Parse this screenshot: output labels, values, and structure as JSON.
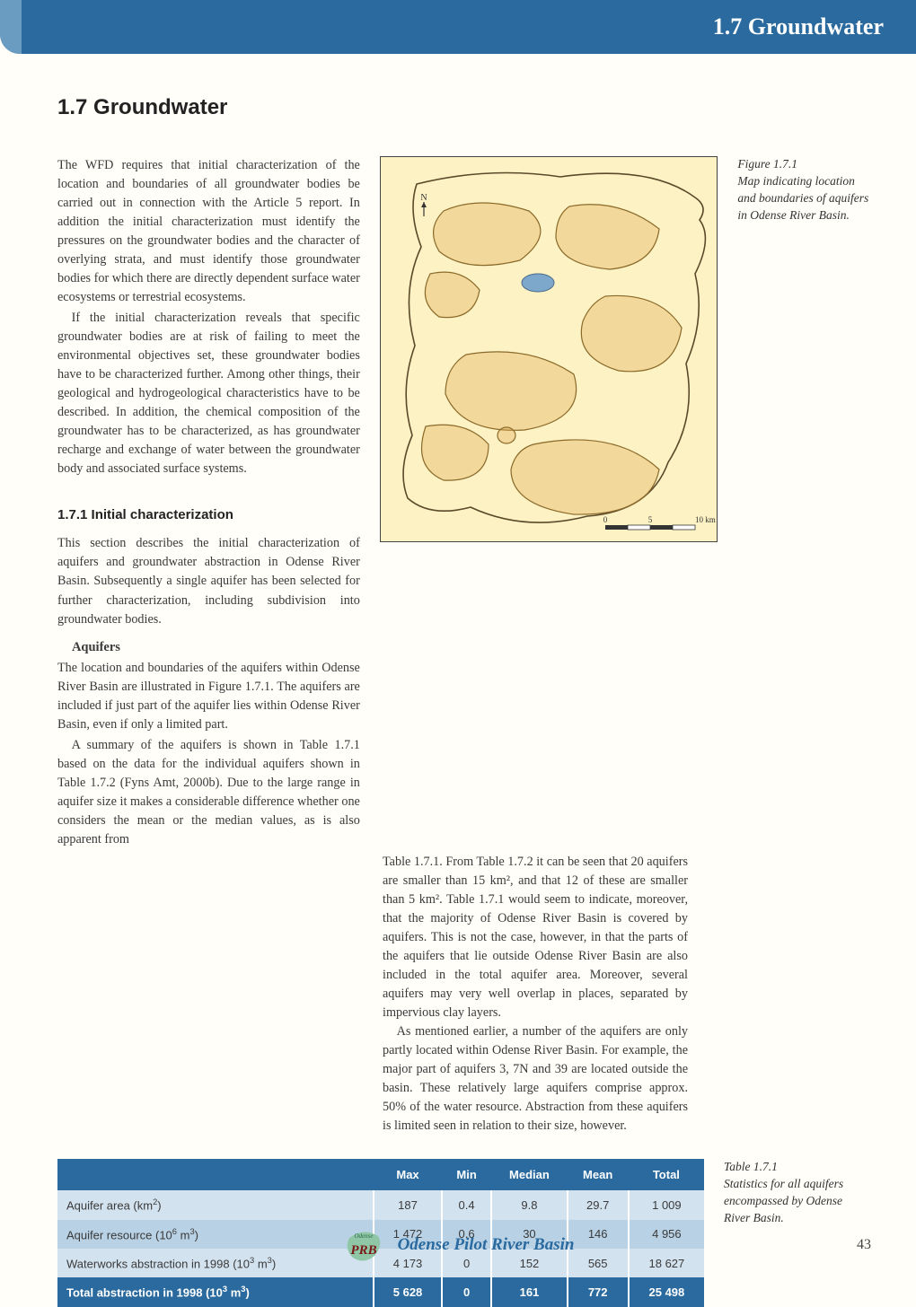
{
  "header": {
    "title": "1.7 Groundwater"
  },
  "section_heading": "1.7 Groundwater",
  "para1": "The WFD requires that initial characterization of the location and boundaries of all groundwater bodies be carried out in connection with the Article 5 report. In addition the initial characterization must identify the pressures on the groundwater bodies and the character of overlying strata, and must identify those groundwater bodies for which there are directly dependent surface water ecosystems or terrestrial ecosystems.",
  "para2": "If the initial characterization reveals that specific groundwater bodies are at risk of failing to meet the environmental objectives set, these groundwater bodies have to be characterized further. Among other things, their geological and hydrogeological characteristics have to be described. In addition, the chemical composition of the groundwater has to be characterized, as has groundwater recharge and exchange of water between the groundwater body and associated surface systems.",
  "subhead_171": "1.7.1 Initial characterization",
  "para3": "This section describes the initial characterization of aquifers and groundwater abstraction in Odense River Basin. Subsequently a single aquifer has been selected for further characterization, including subdivision into groundwater bodies.",
  "aquifers_head": "Aquifers",
  "para4": "The location and boundaries of the aquifers within Odense River Basin are illustrated in Figure 1.7.1. The aquifers are included if just part of the aquifer lies within Odense River Basin, even if only a limited part.",
  "para5": "A summary of the aquifers is shown in Table 1.7.1 based on the data for the individual aquifers shown in Table 1.7.2 (Fyns Amt, 2000b). Due to the large range in aquifer size it makes a considerable difference whether one considers the mean or the median values, as is also apparent from",
  "para6": "Table 1.7.1. From Table 1.7.2 it can be seen that 20 aquifers are smaller than 15 km², and that 12 of these are smaller than 5 km². Table 1.7.1 would seem to indicate, moreover, that the majority of Odense River Basin is covered by aquifers. This is not the case, however, in that the parts of the aquifers that lie outside Odense River Basin are also included in the total aquifer area. Moreover, several aquifers may very well overlap in places, separated by impervious clay layers.",
  "para7": "As mentioned earlier, a number of the aquifers are only partly located within Odense River Basin. For example, the major part of aquifers 3, 7N and 39 are located outside the basin. These relatively large aquifers comprise approx. 50% of the water resource. Abstraction from these aquifers is limited seen in relation to their size, however.",
  "figure_caption": {
    "num": "Figure 1.7.1",
    "text": "Map indicating location and boundaries of aquifers in Odense River Basin."
  },
  "map": {
    "background_color": "#fdf2c4",
    "outline_color": "#5a4a2a",
    "aquifer_fill": "#dca94e",
    "water_fill": "#7da8cc",
    "scale_labels": [
      "0",
      "5",
      "10 km"
    ],
    "scale_color": "#333333"
  },
  "table": {
    "title_num": "Table 1.7.1",
    "title_text": "Statistics for all aquifers encompassed by Odense River Basin.",
    "columns": [
      "",
      "Max",
      "Min",
      "Median",
      "Mean",
      "Total"
    ],
    "rows": [
      {
        "label_html": "Aquifer area (km<sup>2</sup>)",
        "values": [
          "187",
          "0.4",
          "9.8",
          "29.7",
          "1 009"
        ]
      },
      {
        "label_html": "Aquifer resource (10<sup>6</sup> m<sup>3</sup>)",
        "values": [
          "1 472",
          "0.6",
          "30",
          "146",
          "4 956"
        ]
      },
      {
        "label_html": "Waterworks abstraction in 1998 (10<sup>3</sup> m<sup>3</sup>)",
        "values": [
          "4 173",
          "0",
          "152",
          "565",
          "18 627"
        ]
      }
    ],
    "total_row": {
      "label_html": "Total abstraction in 1998 (10<sup>3</sup> m<sup>3</sup>)",
      "values": [
        "5 628",
        "0",
        "161",
        "772",
        "25 498"
      ]
    },
    "header_bg": "#2a6a9e",
    "header_fg": "#ffffff",
    "row_bg_light": "#d3e2ef",
    "row_bg_dark": "#b8d1e4"
  },
  "footer": {
    "logo_top": "Odense",
    "logo_main": "PRB",
    "title": "Odense Pilot River Basin",
    "page": "43"
  }
}
